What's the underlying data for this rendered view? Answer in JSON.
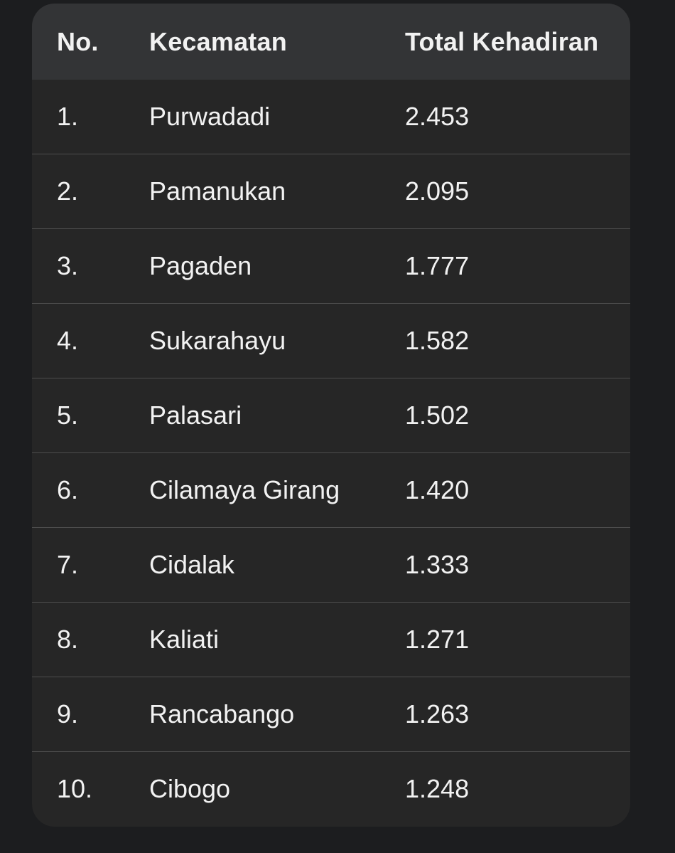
{
  "table": {
    "headers": [
      "No.",
      "Kecamatan",
      "Total Kehadiran"
    ],
    "rows": [
      [
        "1.",
        "Purwadadi",
        "2.453"
      ],
      [
        "2.",
        "Pamanukan",
        "2.095"
      ],
      [
        "3.",
        "Pagaden",
        "1.777"
      ],
      [
        "4.",
        "Sukarahayu",
        "1.582"
      ],
      [
        "5.",
        "Palasari",
        "1.502"
      ],
      [
        "6.",
        "Cilamaya Girang",
        "1.420"
      ],
      [
        "7.",
        "Cidalak",
        "1.333"
      ],
      [
        "8.",
        "Kaliati",
        "1.271"
      ],
      [
        "9.",
        "Rancabango",
        "1.263"
      ],
      [
        "10.",
        "Cibogo",
        "1.248"
      ]
    ]
  }
}
